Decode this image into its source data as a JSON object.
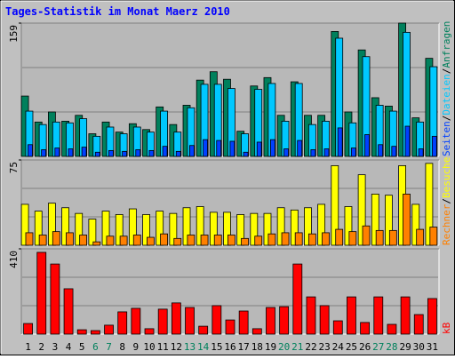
{
  "title": "Tages-Statistik im Monat Maerz 2010",
  "separator": "/",
  "chart_data": [
    {
      "type": "bar",
      "ylim": [
        0,
        159
      ],
      "yticks": [
        159
      ],
      "series": [
        {
          "name": "Anfragen",
          "color": "#00805c",
          "values": [
            72,
            41,
            53,
            42,
            49,
            27,
            41,
            29,
            39,
            32,
            59,
            38,
            61,
            91,
            101,
            92,
            30,
            84,
            94,
            49,
            89,
            49,
            49,
            149,
            53,
            127,
            70,
            60,
            159,
            46,
            117
          ]
        },
        {
          "name": "Dateien",
          "color": "#00c8ff",
          "values": [
            54,
            38,
            41,
            40,
            45,
            24,
            35,
            27,
            35,
            29,
            54,
            29,
            58,
            86,
            86,
            81,
            27,
            80,
            87,
            42,
            87,
            38,
            42,
            141,
            40,
            119,
            61,
            54,
            148,
            41,
            107
          ]
        },
        {
          "name": "Seiten",
          "color": "#0040ff",
          "values": [
            14,
            8,
            10,
            9,
            11,
            5,
            7,
            6,
            8,
            7,
            12,
            6,
            13,
            20,
            19,
            18,
            5,
            17,
            20,
            9,
            19,
            8,
            9,
            34,
            10,
            26,
            14,
            12,
            36,
            9,
            24
          ]
        }
      ]
    },
    {
      "type": "bar",
      "ylim": [
        0,
        75
      ],
      "yticks": [
        75
      ],
      "series": [
        {
          "name": "Besuche",
          "color": "#ffff00",
          "values": [
            36,
            30,
            37,
            33,
            28,
            23,
            30,
            27,
            32,
            27,
            30,
            28,
            33,
            34,
            29,
            29,
            27,
            28,
            28,
            33,
            31,
            33,
            36,
            70,
            34,
            62,
            45,
            44,
            70,
            36,
            72
          ]
        },
        {
          "name": "Rechner",
          "color": "#ff8000",
          "values": [
            11,
            9,
            12,
            11,
            9,
            3,
            8,
            8,
            9,
            7,
            10,
            6,
            9,
            9,
            9,
            9,
            6,
            8,
            10,
            11,
            11,
            10,
            11,
            14,
            12,
            17,
            13,
            13,
            45,
            14,
            16
          ]
        }
      ]
    },
    {
      "type": "bar",
      "ylim": [
        0,
        410
      ],
      "yticks": [
        410
      ],
      "categories": [
        "1",
        "2",
        "3",
        "4",
        "5",
        "6",
        "7",
        "8",
        "9",
        "10",
        "11",
        "12",
        "13",
        "14",
        "15",
        "16",
        "17",
        "18",
        "19",
        "20",
        "21",
        "22",
        "23",
        "24",
        "25",
        "26",
        "27",
        "28",
        "29",
        "30",
        "31"
      ],
      "weekend": [
        5,
        6,
        12,
        13,
        19,
        20,
        26,
        27
      ],
      "weekend_color": "#00805c",
      "series": [
        {
          "name": "kB",
          "color": "#ff0000",
          "values": [
            51,
            393,
            337,
            218,
            21,
            17,
            43,
            107,
            124,
            26,
            120,
            150,
            128,
            38,
            137,
            68,
            111,
            26,
            128,
            132,
            337,
            179,
            137,
            64,
            179,
            56,
            179,
            47,
            179,
            94,
            171
          ]
        }
      ]
    }
  ]
}
